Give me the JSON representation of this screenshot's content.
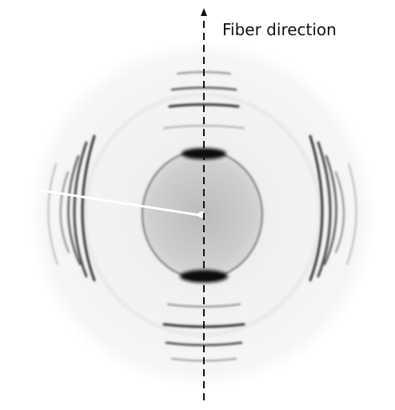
{
  "annotation": {
    "label": "Fiber direction"
  }
}
